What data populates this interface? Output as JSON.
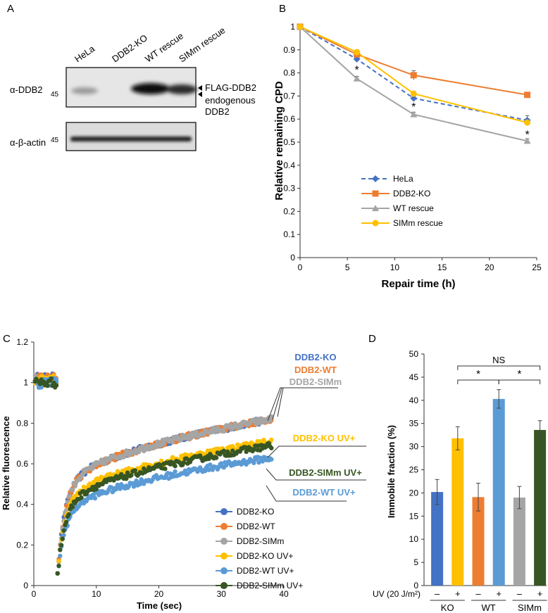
{
  "panels": {
    "a": "A",
    "b": "B",
    "c": "C",
    "d": "D"
  },
  "blot": {
    "lanes": [
      "HeLa",
      "DDB2-KO",
      "WT rescue",
      "SIMm rescue"
    ],
    "ddb2_label": "α-DDB2",
    "ddb2_marker": "45",
    "actin_label": "α-β-actin",
    "actin_marker": "45",
    "flag_label": "FLAG-DDB2",
    "endogenous_label_1": "endogenous",
    "endogenous_label_2": "DDB2"
  },
  "colors": {
    "hela": "#4472c4",
    "ddb2_ko": "#ed7d31",
    "wt_rescue": "#a5a5a5",
    "simm_rescue": "#ffc000",
    "c_ko": "#4472c4",
    "c_wt": "#ed7d31",
    "c_simm": "#a5a5a5",
    "c_ko_uv": "#ffc000",
    "c_wt_uv": "#5b9bd5",
    "c_simm_uv": "#375623"
  },
  "chart_data": [
    {
      "id": "B",
      "type": "line",
      "title": "",
      "xlabel": "Repair time (h)",
      "ylabel": "Relative remaining CPD",
      "xlim": [
        0,
        25
      ],
      "ylim": [
        0,
        1
      ],
      "xticks": [
        "0",
        "5",
        "10",
        "15",
        "20",
        "25"
      ],
      "yticks": [
        "0",
        "0.1",
        "0.2",
        "0.3",
        "0.4",
        "0.5",
        "0.6",
        "0.7",
        "0.8",
        "0.9",
        "1"
      ],
      "x": [
        0,
        6,
        12,
        24
      ],
      "series": [
        {
          "name": "HeLa",
          "values": [
            1.0,
            0.86,
            0.69,
            0.595
          ],
          "errors": [
            0,
            0.01,
            0.01,
            0.02
          ],
          "color": "#4472c4",
          "dashed": true,
          "marker": "diamond"
        },
        {
          "name": "DDB2-KO",
          "values": [
            1.0,
            0.88,
            0.79,
            0.705
          ],
          "errors": [
            0,
            0.01,
            0.02,
            0.01
          ],
          "color": "#ed7d31",
          "dashed": false,
          "marker": "square"
        },
        {
          "name": "WT rescue",
          "values": [
            1.0,
            0.775,
            0.62,
            0.505
          ],
          "errors": [
            0,
            0.01,
            0.01,
            0.01
          ],
          "color": "#a5a5a5",
          "dashed": false,
          "marker": "triangle"
        },
        {
          "name": "SIMm rescue",
          "values": [
            1.0,
            0.89,
            0.71,
            0.585
          ],
          "errors": [
            0,
            0.01,
            0.01,
            0.01
          ],
          "color": "#ffc000",
          "dashed": false,
          "marker": "circle"
        }
      ],
      "annotations": [
        {
          "text": "*",
          "x": 6,
          "y": 0.815
        },
        {
          "text": "*",
          "x": 12,
          "y": 0.655
        },
        {
          "text": "*",
          "x": 24,
          "y": 0.535
        }
      ],
      "legend_position": "bottom-center"
    },
    {
      "id": "C",
      "type": "scatter",
      "title": "",
      "xlabel": "Time (sec)",
      "ylabel": "Relative fluorescence",
      "xlim": [
        0,
        40
      ],
      "ylim": [
        0,
        1.2
      ],
      "xticks": [
        "0",
        "10",
        "20",
        "30",
        "40"
      ],
      "yticks": [
        "0",
        "0.2",
        "0.4",
        "0.6",
        "0.8",
        "1",
        "1.2"
      ],
      "bleach_time": 3.8,
      "recovery_start": 0.06,
      "series": [
        {
          "name": "DDB2-KO",
          "color": "#4472c4",
          "prebleach": 1.02,
          "end_value": 0.82,
          "t30_value": 0.78
        },
        {
          "name": "DDB2-WT",
          "color": "#ed7d31",
          "prebleach": 1.02,
          "end_value": 0.82,
          "t30_value": 0.78
        },
        {
          "name": "DDB2-SIMm",
          "color": "#a5a5a5",
          "prebleach": 1.01,
          "end_value": 0.82,
          "t30_value": 0.78
        },
        {
          "name": "DDB2-KO UV+",
          "color": "#ffc000",
          "prebleach": 1.01,
          "end_value": 0.71,
          "t30_value": 0.66
        },
        {
          "name": "DDB2-WT UV+",
          "color": "#5b9bd5",
          "prebleach": 1.0,
          "end_value": 0.63,
          "t30_value": 0.56
        },
        {
          "name": "DDB2-SIMm UV+",
          "color": "#375623",
          "prebleach": 1.0,
          "end_value": 0.69,
          "t30_value": 0.62
        }
      ],
      "callouts": [
        "DDB2-KO",
        "DDB2-WT",
        "DDB2-SIMm",
        "DDB2-KO UV+",
        "DDB2-SIMm UV+",
        "DDB2-WT UV+"
      ],
      "legend_position": "bottom-right"
    },
    {
      "id": "D",
      "type": "bar",
      "title": "",
      "xlabel": "",
      "ylabel": "Immobile fraction (%)",
      "ylim": [
        0,
        50
      ],
      "yticks": [
        "0",
        "5",
        "10",
        "15",
        "20",
        "25",
        "30",
        "35",
        "40",
        "45",
        "50"
      ],
      "bars": [
        {
          "group": "KO",
          "uv": "–",
          "value": 20.2,
          "error": 2.7,
          "color": "#4472c4"
        },
        {
          "group": "KO",
          "uv": "+",
          "value": 31.8,
          "error": 2.5,
          "color": "#ffc000"
        },
        {
          "group": "WT",
          "uv": "–",
          "value": 19.1,
          "error": 3.0,
          "color": "#ed7d31"
        },
        {
          "group": "WT",
          "uv": "+",
          "value": 40.3,
          "error": 2.0,
          "color": "#5b9bd5"
        },
        {
          "group": "SIMm",
          "uv": "–",
          "value": 19.0,
          "error": 2.4,
          "color": "#a5a5a5"
        },
        {
          "group": "SIMm",
          "uv": "+",
          "value": 33.6,
          "error": 2.0,
          "color": "#375623"
        }
      ],
      "groups": [
        "KO",
        "WT",
        "SIMm"
      ],
      "uv_label": "UV (20 J/m²)",
      "significance": [
        {
          "label": "NS",
          "from_bar": 1,
          "to_bar": 5
        },
        {
          "label": "*",
          "from_bar": 1,
          "to_bar": 3
        },
        {
          "label": "*",
          "from_bar": 3,
          "to_bar": 5
        }
      ]
    }
  ]
}
